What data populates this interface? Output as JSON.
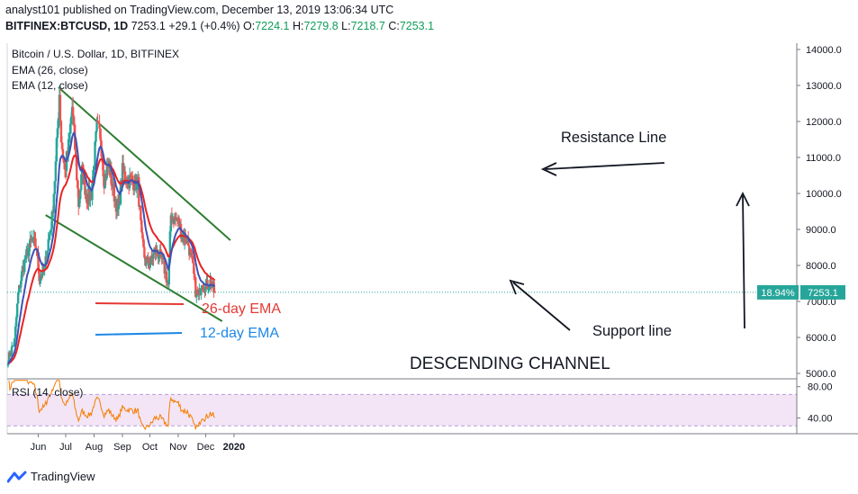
{
  "header": {
    "line1": "analyst101 published on TradingView.com, December 13, 2019 13:06:34 UTC",
    "symbol": "BITFINEX:BTCUSD, 1D",
    "last": "7253.1",
    "change": "+29.1 (+0.4%)",
    "o_label": "O:",
    "o": "7224.1",
    "h_label": "H:",
    "h": "7279.8",
    "l_label": "L:",
    "l": "7218.7",
    "c_label": "C:",
    "c": "7253.1"
  },
  "legend": {
    "title": "Bitcoin / U.S. Dollar, 1D, BITFINEX",
    "ema26": "EMA (26, close)",
    "ema12": "EMA (12, close)",
    "rsi": "RSI (14, close)"
  },
  "price_tag": {
    "pct": "18.94%",
    "price": "7253.1"
  },
  "annotations": {
    "resistance": "Resistance Line",
    "support": "Support line",
    "channel": "DESCENDING CHANNEL",
    "ema26": "26-day EMA",
    "ema12": "12-day EMA"
  },
  "brand": {
    "name": "TradingView"
  },
  "colors": {
    "up": "#26a69a",
    "down": "#ef5350",
    "ema26": "#e82323",
    "ema12": "#3f51b5",
    "channel": "#2e7d32",
    "rsi": "#f57c00",
    "rsi_band": "#f3e5f5",
    "tag": "#26a69a",
    "annot_red": "#e53935",
    "annot_blue": "#1e88e5"
  },
  "chart_data": {
    "type": "candlestick",
    "title": "Bitcoin / U.S. Dollar, 1D, BITFINEX",
    "y_ticks": [
      "14000.0",
      "13000.0",
      "12000.0",
      "11000.0",
      "10000.0",
      "9000.0",
      "8000.0",
      "7000.0",
      "6000.0",
      "5000.0"
    ],
    "y_range": [
      5000,
      14000
    ],
    "x_ticks": [
      "Jun",
      "Jul",
      "Aug",
      "Sep",
      "Oct",
      "Nov",
      "Dec",
      "2020"
    ],
    "dates_start": "2019-05-01",
    "close_path": [
      [
        "2019-05-01",
        5400
      ],
      [
        "2019-05-08",
        5900
      ],
      [
        "2019-05-12",
        7200
      ],
      [
        "2019-05-17",
        7900
      ],
      [
        "2019-05-20",
        8200
      ],
      [
        "2019-05-27",
        8700
      ],
      [
        "2019-06-01",
        8500
      ],
      [
        "2019-06-04",
        7700
      ],
      [
        "2019-06-10",
        7900
      ],
      [
        "2019-06-14",
        8700
      ],
      [
        "2019-06-18",
        9300
      ],
      [
        "2019-06-22",
        10800
      ],
      [
        "2019-06-26",
        12800
      ],
      [
        "2019-06-28",
        11500
      ],
      [
        "2019-07-02",
        10600
      ],
      [
        "2019-07-06",
        11300
      ],
      [
        "2019-07-10",
        12400
      ],
      [
        "2019-07-14",
        10900
      ],
      [
        "2019-07-17",
        9700
      ],
      [
        "2019-07-21",
        10600
      ],
      [
        "2019-07-26",
        9900
      ],
      [
        "2019-07-31",
        10000
      ],
      [
        "2019-08-06",
        11800
      ],
      [
        "2019-08-10",
        11600
      ],
      [
        "2019-08-14",
        10400
      ],
      [
        "2019-08-19",
        10800
      ],
      [
        "2019-08-23",
        10200
      ],
      [
        "2019-08-29",
        9500
      ],
      [
        "2019-09-03",
        10600
      ],
      [
        "2019-09-08",
        10400
      ],
      [
        "2019-09-14",
        10350
      ],
      [
        "2019-09-20",
        10250
      ],
      [
        "2019-09-24",
        8700
      ],
      [
        "2019-09-28",
        8100
      ],
      [
        "2019-10-04",
        8100
      ],
      [
        "2019-10-08",
        8400
      ],
      [
        "2019-10-13",
        8300
      ],
      [
        "2019-10-18",
        8000
      ],
      [
        "2019-10-23",
        7450
      ],
      [
        "2019-10-26",
        9400
      ],
      [
        "2019-10-29",
        9300
      ],
      [
        "2019-11-03",
        9200
      ],
      [
        "2019-11-08",
        8800
      ],
      [
        "2019-11-13",
        8700
      ],
      [
        "2019-11-18",
        8100
      ],
      [
        "2019-11-22",
        7300
      ],
      [
        "2019-11-25",
        7100
      ],
      [
        "2019-11-29",
        7600
      ],
      [
        "2019-12-03",
        7400
      ],
      [
        "2019-12-08",
        7550
      ],
      [
        "2019-12-13",
        7253.1
      ]
    ],
    "ema26_name": "EMA (26, close)",
    "ema12_name": "EMA (12, close)",
    "resistance_line": [
      [
        "2019-06-26",
        12950
      ],
      [
        "2019-12-31",
        8700
      ]
    ],
    "support_line": [
      [
        "2019-06-12",
        9400
      ],
      [
        "2019-12-22",
        6450
      ]
    ],
    "rsi": {
      "name": "RSI (14, close)",
      "y_ticks": [
        "80.00",
        "40.00"
      ],
      "y_range": [
        20,
        90
      ],
      "band": [
        30,
        70
      ]
    }
  }
}
